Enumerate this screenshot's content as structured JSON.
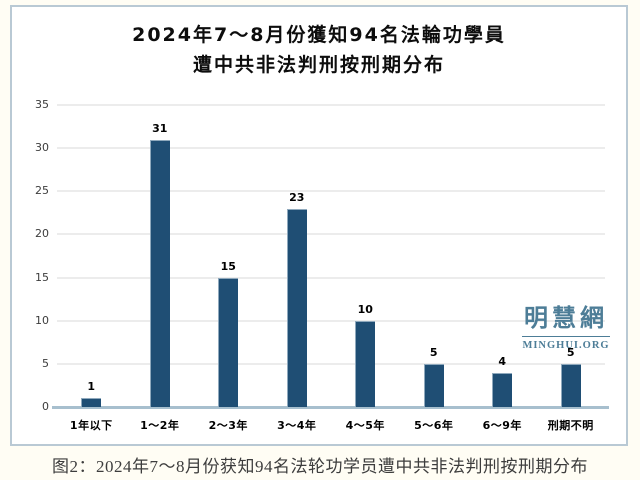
{
  "page": {
    "background_color": "#fffdf4",
    "frame_border_color": "#b9c9d4"
  },
  "title": {
    "line1": "2024年7～8月份獲知94名法輪功學員",
    "line2": "遭中共非法判刑按刑期分布"
  },
  "watermark": {
    "site_name": "明慧網",
    "site_url": "MINGHUI.ORG",
    "color": "#4d7d97"
  },
  "caption": "图2：2024年7～8月份获知94名法轮功学员遭中共非法判刑按刑期分布",
  "chart_data": {
    "type": "bar",
    "title": "2024年7～8月份獲知94名法輪功學員遭中共非法判刑按刑期分布",
    "categories": [
      "1年以下",
      "1～2年",
      "2～3年",
      "3～4年",
      "4～5年",
      "5～6年",
      "6～9年",
      "刑期不明"
    ],
    "values": [
      1,
      31,
      15,
      23,
      10,
      5,
      4,
      5
    ],
    "xlabel": "",
    "ylabel": "",
    "ylim": [
      0,
      35
    ],
    "yticks": [
      0,
      5,
      10,
      15,
      20,
      25,
      30,
      35
    ],
    "grid": true,
    "legend": false,
    "bar_color": "#1f4e74",
    "grid_color": "#ececec",
    "baseline_color": "#a7bfce"
  }
}
